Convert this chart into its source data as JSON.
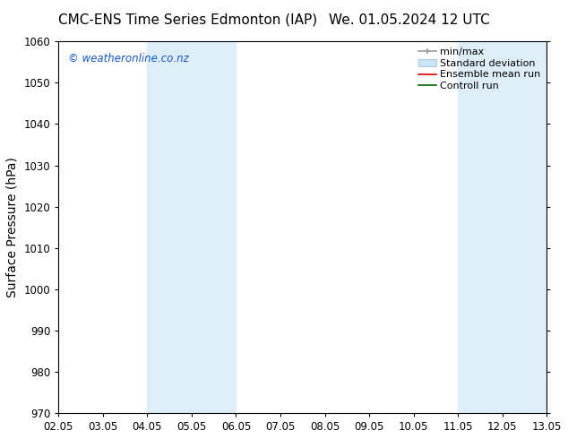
{
  "title_left": "CMC-ENS Time Series Edmonton (IAP)",
  "title_right": "We. 01.05.2024 12 UTC",
  "ylabel": "Surface Pressure (hPa)",
  "ylim": [
    970,
    1060
  ],
  "yticks": [
    970,
    980,
    990,
    1000,
    1010,
    1020,
    1030,
    1040,
    1050,
    1060
  ],
  "xlim": [
    0,
    11
  ],
  "xtick_labels": [
    "02.05",
    "03.05",
    "04.05",
    "05.05",
    "06.05",
    "07.05",
    "08.05",
    "09.05",
    "10.05",
    "11.05",
    "12.05",
    "13.05"
  ],
  "xtick_positions": [
    0,
    1,
    2,
    3,
    4,
    5,
    6,
    7,
    8,
    9,
    10,
    11
  ],
  "shaded_regions": [
    {
      "xmin": 2,
      "xmax": 4,
      "color": "#ddeef8"
    },
    {
      "xmin": 9,
      "xmax": 11,
      "color": "#ddeef8"
    }
  ],
  "watermark_text": "© weatheronline.co.nz",
  "watermark_color": "#1155cc",
  "background_color": "#ffffff",
  "title_fontsize": 11,
  "axis_label_fontsize": 10,
  "tick_fontsize": 8.5,
  "legend_fontsize": 8
}
